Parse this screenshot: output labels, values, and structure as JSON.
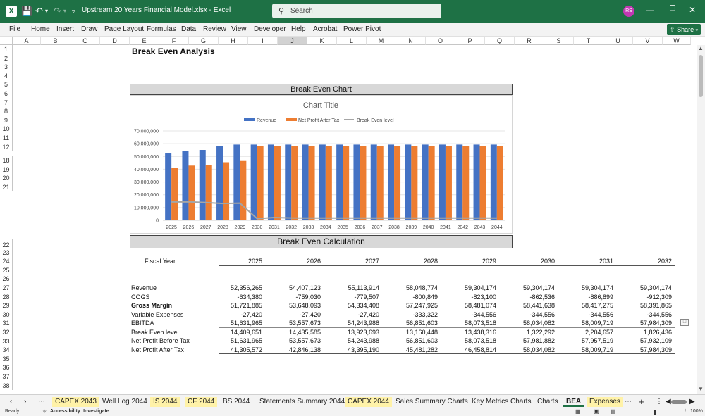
{
  "titlebar": {
    "title": "Upstream 20 Years Financial Model.xlsx  -  Excel",
    "search_placeholder": "Search",
    "avatar_initials": "RS"
  },
  "ribbon": {
    "tabs": [
      "File",
      "Home",
      "Insert",
      "Draw",
      "Page Layout",
      "Formulas",
      "Data",
      "Review",
      "View",
      "Developer",
      "Help",
      "Acrobat",
      "Power Pivot"
    ],
    "share_label": "Share"
  },
  "columns": [
    "A",
    "B",
    "C",
    "D",
    "E",
    "F",
    "G",
    "H",
    "I",
    "J",
    "K",
    "L",
    "M",
    "N",
    "O",
    "P",
    "Q",
    "R",
    "S",
    "T",
    "U",
    "V",
    "W"
  ],
  "selected_column": "J",
  "rows": [
    "1",
    "2",
    "3",
    "4",
    "5",
    "6",
    "7",
    "8",
    "9",
    "10",
    "11",
    "12",
    "18",
    "19",
    "20",
    "21",
    "22",
    "23",
    "24",
    "25",
    "26",
    "27",
    "28",
    "29",
    "30",
    "31",
    "32",
    "33",
    "34",
    "35",
    "36",
    "37",
    "38"
  ],
  "sheet": {
    "title": "Break Even Analysis",
    "chart_banner": "Break Even Chart",
    "calc_banner": "Break Even Calculation",
    "fiscal_year_label": "Fiscal Year",
    "years": [
      "2025",
      "2026",
      "2027",
      "2028",
      "2029",
      "2030",
      "2031",
      "2032"
    ],
    "table": [
      {
        "label": "Revenue",
        "bold": false,
        "values": [
          "52,356,265",
          "54,407,123",
          "55,113,914",
          "58,048,774",
          "59,304,174",
          "59,304,174",
          "59,304,174",
          "59,304,174"
        ]
      },
      {
        "label": "COGS",
        "bold": false,
        "values": [
          "-634,380",
          "-759,030",
          "-779,507",
          "-800,849",
          "-823,100",
          "-862,536",
          "-886,899",
          "-912,309"
        ]
      },
      {
        "label": "Gross Margin",
        "bold": true,
        "values": [
          "51,721,885",
          "53,648,093",
          "54,334,408",
          "57,247,925",
          "58,481,074",
          "58,441,638",
          "58,417,275",
          "58,391,865"
        ]
      },
      {
        "label": "Variable Expenses",
        "bold": false,
        "values": [
          "-27,420",
          "-27,420",
          "-27,420",
          "-333,322",
          "-344,556",
          "-344,556",
          "-344,556",
          "-344,556"
        ]
      },
      {
        "label": "EBITDA",
        "bold": false,
        "values": [
          "51,631,965",
          "53,557,673",
          "54,243,988",
          "56,851,603",
          "58,073,518",
          "58,034,082",
          "58,009,719",
          "57,984,309"
        ]
      },
      {
        "label": "Break Even level",
        "bold": false,
        "values": [
          "14,409,651",
          "14,435,585",
          "13,923,693",
          "13,160,448",
          "13,438,316",
          "1,322,292",
          "2,204,657",
          "1,826,436"
        ]
      },
      {
        "label": "Net Profit Before Tax",
        "bold": false,
        "values": [
          "51,631,965",
          "53,557,673",
          "54,243,988",
          "56,851,603",
          "58,073,518",
          "57,981,882",
          "57,957,519",
          "57,932,109"
        ]
      },
      {
        "label": "Net Profit After Tax",
        "bold": false,
        "values": [
          "41,305,572",
          "42,846,138",
          "43,395,190",
          "45,481,282",
          "46,458,814",
          "58,034,082",
          "58,009,719",
          "57,984,309"
        ]
      }
    ]
  },
  "chart_data": {
    "type": "bar",
    "title": "Chart Title",
    "categories": [
      "2025",
      "2026",
      "2027",
      "2028",
      "2029",
      "2030",
      "2031",
      "2032",
      "2033",
      "2034",
      "2035",
      "2036",
      "2037",
      "2038",
      "2039",
      "2040",
      "2041",
      "2042",
      "2043",
      "2044"
    ],
    "series": [
      {
        "name": "Revenue",
        "type": "bar",
        "color": "#4472c4",
        "values": [
          52356265,
          54407123,
          55113914,
          58048774,
          59304174,
          59304174,
          59304174,
          59304174,
          59304174,
          59304174,
          59304174,
          59304174,
          59304174,
          59304174,
          59304174,
          59304174,
          59304174,
          59304174,
          59304174,
          59304174
        ]
      },
      {
        "name": "Net Profit After Tax",
        "type": "bar",
        "color": "#ed7d31",
        "values": [
          41305572,
          42846138,
          43395190,
          45481282,
          46458814,
          58034082,
          58009719,
          57984309,
          58000000,
          58000000,
          58000000,
          58000000,
          58000000,
          58000000,
          58000000,
          58000000,
          58000000,
          58000000,
          58000000,
          58000000
        ]
      },
      {
        "name": "Break Even level",
        "type": "line",
        "color": "#a5a5a5",
        "values": [
          14409651,
          14435585,
          13923693,
          13160448,
          13438316,
          1322292,
          2204657,
          1826436,
          1800000,
          1800000,
          1800000,
          1800000,
          1800000,
          1800000,
          1800000,
          1800000,
          1800000,
          1800000,
          1800000,
          1800000
        ]
      }
    ],
    "y_ticks": [
      "0",
      "10,000,000",
      "20,000,000",
      "30,000,000",
      "40,000,000",
      "50,000,000",
      "60,000,000",
      "70,000,000"
    ],
    "ylim": [
      0,
      70000000
    ],
    "legend": "top",
    "grid": true
  },
  "sheet_tabs": [
    {
      "label": "CAPEX 2043",
      "highlight": true,
      "active": false
    },
    {
      "label": "Well Log 2044",
      "highlight": false,
      "active": false
    },
    {
      "label": "IS 2044",
      "highlight": true,
      "active": false
    },
    {
      "label": "CF 2044",
      "highlight": true,
      "active": false
    },
    {
      "label": "BS 2044",
      "highlight": false,
      "active": false
    },
    {
      "label": "Statements Summary 2044",
      "highlight": false,
      "active": false
    },
    {
      "label": "CAPEX 2044",
      "highlight": true,
      "active": false
    },
    {
      "label": "Sales Summary Charts",
      "highlight": false,
      "active": false
    },
    {
      "label": "Key Metrics Charts",
      "highlight": false,
      "active": false
    },
    {
      "label": "Charts",
      "highlight": false,
      "active": false
    },
    {
      "label": "BEA",
      "highlight": false,
      "active": true
    },
    {
      "label": "Expenses",
      "highlight": true,
      "active": false
    }
  ],
  "status": {
    "ready": "Ready",
    "accessibility": "Accessibility: Investigate",
    "zoom": "100%"
  }
}
